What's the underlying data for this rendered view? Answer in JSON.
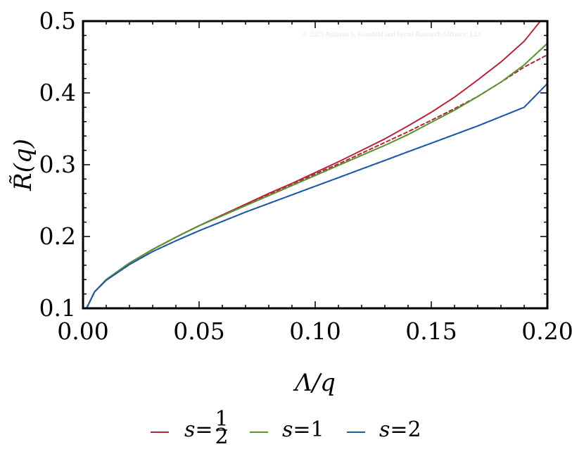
{
  "chart_data": {
    "type": "line",
    "xlabel": "Λ/q",
    "ylabel": "R̃(q)",
    "xlim": [
      0.0,
      0.2
    ],
    "ylim": [
      0.1,
      0.5
    ],
    "x_ticks": [
      "0.00",
      "0.05",
      "0.10",
      "0.15",
      "0.20"
    ],
    "y_ticks": [
      "0.1",
      "0.2",
      "0.3",
      "0.4",
      "0.5"
    ],
    "grid": false,
    "legend_position": "bottom",
    "watermark": "© 2023 Andreas S. Kronfeld and Fermi Research Alliance, LLC",
    "series": [
      {
        "name": "s=1/2",
        "color": "#b5253a",
        "style": "solid",
        "x": [
          0.0015,
          0.005,
          0.01,
          0.02,
          0.03,
          0.04,
          0.05,
          0.06,
          0.07,
          0.08,
          0.09,
          0.1,
          0.11,
          0.12,
          0.13,
          0.14,
          0.15,
          0.16,
          0.17,
          0.18,
          0.19,
          0.197
        ],
        "y": [
          0.1,
          0.123,
          0.14,
          0.163,
          0.182,
          0.199,
          0.215,
          0.23,
          0.245,
          0.26,
          0.274,
          0.289,
          0.304,
          0.32,
          0.336,
          0.354,
          0.373,
          0.394,
          0.418,
          0.443,
          0.472,
          0.5
        ]
      },
      {
        "name": "s=1",
        "color": "#5b9632",
        "style": "solid",
        "x": [
          0.0015,
          0.005,
          0.01,
          0.02,
          0.03,
          0.04,
          0.05,
          0.06,
          0.07,
          0.08,
          0.09,
          0.1,
          0.11,
          0.12,
          0.13,
          0.14,
          0.15,
          0.16,
          0.17,
          0.18,
          0.19,
          0.2
        ],
        "y": [
          0.1,
          0.123,
          0.14,
          0.163,
          0.182,
          0.199,
          0.215,
          0.229,
          0.243,
          0.257,
          0.271,
          0.285,
          0.299,
          0.313,
          0.327,
          0.342,
          0.359,
          0.376,
          0.395,
          0.415,
          0.439,
          0.469
        ]
      },
      {
        "name": "s=2",
        "color": "#1f5aa6",
        "style": "solid",
        "x": [
          0.0015,
          0.005,
          0.01,
          0.02,
          0.03,
          0.04,
          0.05,
          0.06,
          0.07,
          0.08,
          0.09,
          0.1,
          0.11,
          0.12,
          0.13,
          0.14,
          0.15,
          0.16,
          0.17,
          0.18,
          0.19,
          0.2
        ],
        "y": [
          0.1,
          0.123,
          0.139,
          0.161,
          0.179,
          0.194,
          0.208,
          0.221,
          0.234,
          0.246,
          0.258,
          0.27,
          0.282,
          0.294,
          0.306,
          0.318,
          0.33,
          0.342,
          0.354,
          0.367,
          0.38,
          0.413
        ]
      },
      {
        "name": "",
        "color": "#b5253a",
        "style": "dashed",
        "x": [
          0.0015,
          0.005,
          0.01,
          0.02,
          0.03,
          0.04,
          0.05,
          0.06,
          0.07,
          0.08,
          0.09,
          0.1,
          0.11,
          0.12,
          0.13,
          0.14,
          0.15,
          0.16,
          0.17,
          0.18,
          0.19,
          0.2
        ],
        "y": [
          0.1,
          0.123,
          0.14,
          0.163,
          0.182,
          0.199,
          0.215,
          0.23,
          0.244,
          0.258,
          0.272,
          0.287,
          0.301,
          0.316,
          0.331,
          0.346,
          0.362,
          0.378,
          0.395,
          0.415,
          0.436,
          0.453
        ]
      },
      {
        "name": "",
        "color": "#5b9632",
        "style": "dashed",
        "x": [
          0.0015,
          0.005,
          0.01,
          0.02,
          0.03,
          0.04,
          0.05,
          0.06,
          0.07,
          0.08,
          0.09,
          0.1,
          0.11,
          0.12,
          0.13,
          0.14,
          0.15,
          0.16,
          0.17,
          0.18,
          0.19,
          0.2
        ],
        "y": [
          0.1,
          0.123,
          0.14,
          0.163,
          0.182,
          0.199,
          0.215,
          0.229,
          0.243,
          0.257,
          0.271,
          0.285,
          0.299,
          0.313,
          0.327,
          0.342,
          0.359,
          0.376,
          0.395,
          0.415,
          0.439,
          0.469
        ]
      },
      {
        "name": "",
        "color": "#1f5aa6",
        "style": "dashed",
        "x": [
          0.0015,
          0.005,
          0.01,
          0.02,
          0.03,
          0.04,
          0.05,
          0.06,
          0.07,
          0.08,
          0.09,
          0.1,
          0.11,
          0.12,
          0.13,
          0.14,
          0.15,
          0.16,
          0.17,
          0.18,
          0.19,
          0.2
        ],
        "y": [
          0.1,
          0.123,
          0.139,
          0.161,
          0.179,
          0.194,
          0.208,
          0.221,
          0.234,
          0.246,
          0.258,
          0.27,
          0.282,
          0.294,
          0.306,
          0.318,
          0.33,
          0.342,
          0.354,
          0.367,
          0.38,
          0.413
        ]
      }
    ]
  }
}
